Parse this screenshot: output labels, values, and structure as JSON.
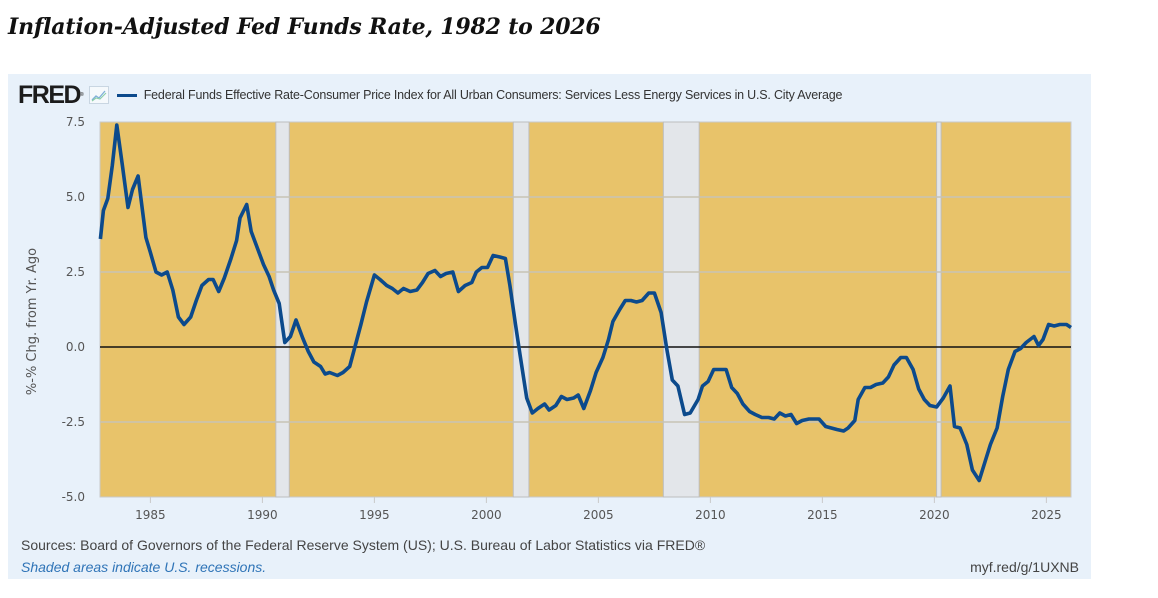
{
  "page": {
    "title": "Inflation-Adjusted Fed Funds Rate, 1982 to 2026"
  },
  "header": {
    "logo_text": "FRED",
    "logo_mark": "®",
    "chart_icon": "line-chart-icon"
  },
  "footer": {
    "sources": "Sources: Board of Governors of the Federal Reserve System (US); U.S. Bureau of Labor Statistics via FRED®",
    "recession_note": "Shaded areas indicate U.S. recessions.",
    "short_link": "myf.red/g/1UXNB"
  },
  "colors": {
    "plot_background": "#e8c36a",
    "recession_band": "#e3e6ea",
    "series_line": "#0c4a8c",
    "zero_line": "#111111",
    "gridline": "#c8c3b4",
    "card_background": "#e8f1fa"
  },
  "chart_data": {
    "type": "line",
    "title": "Inflation-Adjusted Fed Funds Rate, 1982 to 2026",
    "xlabel": "",
    "ylabel": "%-% Chg. from Yr. Ago",
    "xlim": [
      1982.75,
      2026.1
    ],
    "ylim": [
      -5.0,
      7.5
    ],
    "x_ticks": [
      1985,
      1990,
      1995,
      2000,
      2005,
      2010,
      2015,
      2020,
      2025
    ],
    "x_tick_labels": [
      "1985",
      "1990",
      "1995",
      "2000",
      "2005",
      "2010",
      "2015",
      "2020",
      "2025"
    ],
    "y_ticks": [
      -5.0,
      -2.5,
      0.0,
      2.5,
      5.0,
      7.5
    ],
    "y_tick_labels": [
      "-5.0",
      "-2.5",
      "0.0",
      "2.5",
      "5.0",
      "7.5"
    ],
    "grid": true,
    "reference_line": 0.0,
    "legend_position": "top-left",
    "recessions": [
      {
        "start": 1990.6,
        "end": 1991.2
      },
      {
        "start": 2001.2,
        "end": 2001.9
      },
      {
        "start": 2007.9,
        "end": 2009.5
      },
      {
        "start": 2020.1,
        "end": 2020.3
      }
    ],
    "series": [
      {
        "name": "Federal Funds Effective Rate-Consumer Price Index for All Urban Consumers: Services Less Energy Services in U.S. City Average",
        "x": [
          1982.77,
          1982.9,
          1983.1,
          1983.3,
          1983.5,
          1983.75,
          1984.0,
          1984.2,
          1984.45,
          1984.8,
          1985.0,
          1985.25,
          1985.5,
          1985.75,
          1986.0,
          1986.25,
          1986.5,
          1986.8,
          1987.05,
          1987.3,
          1987.6,
          1987.8,
          1988.05,
          1988.3,
          1988.6,
          1988.85,
          1989.0,
          1989.3,
          1989.5,
          1989.8,
          1990.05,
          1990.3,
          1990.5,
          1990.75,
          1991.0,
          1991.25,
          1991.5,
          1991.8,
          1992.05,
          1992.3,
          1992.6,
          1992.8,
          1993.0,
          1993.35,
          1993.6,
          1993.9,
          1994.15,
          1994.4,
          1994.65,
          1995.0,
          1995.25,
          1995.55,
          1995.8,
          1996.05,
          1996.3,
          1996.6,
          1996.9,
          1997.15,
          1997.4,
          1997.7,
          1997.95,
          1998.2,
          1998.5,
          1998.75,
          1999.05,
          1999.35,
          1999.55,
          1999.8,
          2000.05,
          2000.3,
          2000.6,
          2000.85,
          2001.05,
          2001.3,
          2001.5,
          2001.8,
          2002.05,
          2002.3,
          2002.6,
          2002.8,
          2003.1,
          2003.35,
          2003.6,
          2003.9,
          2004.1,
          2004.35,
          2004.65,
          2004.9,
          2005.2,
          2005.45,
          2005.65,
          2005.95,
          2006.2,
          2006.45,
          2006.7,
          2006.95,
          2007.25,
          2007.5,
          2007.8,
          2008.05,
          2008.3,
          2008.55,
          2008.85,
          2009.1,
          2009.45,
          2009.65,
          2009.9,
          2010.15,
          2010.45,
          2010.7,
          2010.95,
          2011.2,
          2011.45,
          2011.75,
          2012.0,
          2012.3,
          2012.6,
          2012.85,
          2013.1,
          2013.35,
          2013.6,
          2013.85,
          2014.1,
          2014.4,
          2014.6,
          2014.85,
          2015.15,
          2015.4,
          2015.65,
          2015.95,
          2016.15,
          2016.45,
          2016.6,
          2016.9,
          2017.15,
          2017.4,
          2017.7,
          2017.95,
          2018.2,
          2018.5,
          2018.75,
          2019.05,
          2019.3,
          2019.55,
          2019.8,
          2020.1,
          2020.4,
          2020.7,
          2020.9,
          2021.15,
          2021.45,
          2021.7,
          2022.0,
          2022.25,
          2022.5,
          2022.8,
          2023.05,
          2023.3,
          2023.6,
          2023.85,
          2024.1,
          2024.45,
          2024.65,
          2024.85,
          2025.1,
          2025.35,
          2025.6,
          2025.9,
          2026.1
        ],
        "values": [
          3.6,
          4.55,
          4.95,
          6.05,
          7.4,
          6.05,
          4.65,
          5.25,
          5.7,
          3.65,
          3.15,
          2.5,
          2.4,
          2.5,
          1.9,
          1.0,
          0.75,
          1.0,
          1.55,
          2.05,
          2.25,
          2.25,
          1.85,
          2.3,
          2.95,
          3.55,
          4.3,
          4.75,
          3.85,
          3.25,
          2.75,
          2.35,
          1.9,
          1.45,
          0.15,
          0.35,
          0.9,
          0.3,
          -0.15,
          -0.5,
          -0.65,
          -0.9,
          -0.85,
          -0.95,
          -0.85,
          -0.65,
          0.05,
          0.75,
          1.5,
          2.4,
          2.25,
          2.05,
          1.95,
          1.8,
          1.95,
          1.85,
          1.9,
          2.15,
          2.45,
          2.55,
          2.35,
          2.45,
          2.5,
          1.85,
          2.05,
          2.15,
          2.5,
          2.65,
          2.65,
          3.05,
          3.0,
          2.95,
          2.05,
          0.75,
          -0.25,
          -1.7,
          -2.2,
          -2.05,
          -1.9,
          -2.1,
          -1.95,
          -1.65,
          -1.75,
          -1.7,
          -1.6,
          -2.05,
          -1.45,
          -0.85,
          -0.35,
          0.25,
          0.85,
          1.25,
          1.55,
          1.55,
          1.5,
          1.55,
          1.8,
          1.8,
          1.15,
          -0.05,
          -1.1,
          -1.3,
          -2.25,
          -2.2,
          -1.75,
          -1.3,
          -1.15,
          -0.75,
          -0.75,
          -0.75,
          -1.35,
          -1.55,
          -1.9,
          -2.15,
          -2.25,
          -2.35,
          -2.35,
          -2.4,
          -2.2,
          -2.3,
          -2.25,
          -2.55,
          -2.45,
          -2.4,
          -2.4,
          -2.4,
          -2.65,
          -2.7,
          -2.75,
          -2.8,
          -2.7,
          -2.45,
          -1.75,
          -1.35,
          -1.35,
          -1.25,
          -1.2,
          -1.0,
          -0.6,
          -0.35,
          -0.35,
          -0.75,
          -1.4,
          -1.75,
          -1.95,
          -2.0,
          -1.7,
          -1.3,
          -2.65,
          -2.7,
          -3.25,
          -4.1,
          -4.45,
          -3.85,
          -3.25,
          -2.7,
          -1.65,
          -0.75,
          -0.15,
          -0.05,
          0.15,
          0.35,
          0.05,
          0.25,
          0.75,
          0.7,
          0.75,
          0.75,
          0.65
        ]
      }
    ]
  }
}
